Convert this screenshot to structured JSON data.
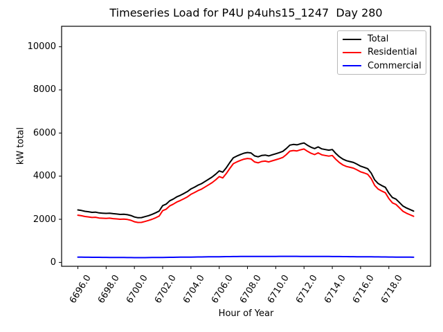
{
  "title": "Timeseries Load for P4U p4uhs15_1247  Day 280",
  "axes": {
    "xlabel": "Hour of Year",
    "ylabel": "kW total"
  },
  "legend": {
    "position": "upper right",
    "entries": [
      {
        "label": "Total",
        "color": "#000000"
      },
      {
        "label": "Residential",
        "color": "#ff0000"
      },
      {
        "label": "Commercial",
        "color": "#0000ff"
      }
    ]
  },
  "chart_data": {
    "type": "line",
    "title": "Timeseries Load for P4U p4uhs15_1247  Day 280",
    "xlabel": "Hour of Year",
    "ylabel": "kW total",
    "grid": false,
    "legend_position": "upper right",
    "xlim": [
      6694.85,
      6720.95
    ],
    "ylim": [
      -180,
      10950
    ],
    "xticks": [
      6696,
      6698,
      6700,
      6702,
      6704,
      6706,
      6708,
      6710,
      6712,
      6714,
      6716,
      6718
    ],
    "xtick_labels": [
      "6696.0",
      "6698.0",
      "6700.0",
      "6702.0",
      "6704.0",
      "6706.0",
      "6708.0",
      "6710.0",
      "6712.0",
      "6714.0",
      "6716.0",
      "6718.0"
    ],
    "yticks": [
      0,
      2000,
      4000,
      6000,
      8000,
      10000
    ],
    "ytick_labels": [
      "0",
      "2000",
      "4000",
      "6000",
      "8000",
      "10000"
    ],
    "x_start": 6696.0,
    "x_step": 0.25,
    "series": [
      {
        "name": "Total",
        "color": "#000000",
        "values": [
          2435,
          2408,
          2371,
          2350,
          2323,
          2332,
          2296,
          2284,
          2273,
          2283,
          2260,
          2244,
          2227,
          2234,
          2214,
          2175,
          2106,
          2072,
          2079,
          2122,
          2169,
          2228,
          2298,
          2380,
          2632,
          2704,
          2856,
          2938,
          3040,
          3112,
          3194,
          3286,
          3408,
          3490,
          3582,
          3654,
          3756,
          3858,
          3960,
          4092,
          4244,
          4186,
          4388,
          4630,
          4852,
          4933,
          5004,
          5065,
          5096,
          5077,
          4938,
          4898,
          4959,
          4979,
          4940,
          4990,
          5040,
          5091,
          5151,
          5281,
          5441,
          5471,
          5451,
          5500,
          5540,
          5429,
          5339,
          5278,
          5357,
          5266,
          5235,
          5204,
          5233,
          5052,
          4901,
          4790,
          4718,
          4677,
          4636,
          4554,
          4463,
          4411,
          4350,
          4148,
          3827,
          3655,
          3564,
          3482,
          3211,
          3009,
          2938,
          2776,
          2615,
          2524,
          2452,
          2381
        ]
      },
      {
        "name": "Residential",
        "color": "#ff0000",
        "values": [
          2190,
          2165,
          2130,
          2110,
          2085,
          2095,
          2060,
          2050,
          2040,
          2052,
          2030,
          2016,
          2000,
          2008,
          1990,
          1952,
          1885,
          1852,
          1858,
          1900,
          1945,
          2002,
          2070,
          2150,
          2400,
          2470,
          2620,
          2700,
          2800,
          2870,
          2950,
          3040,
          3160,
          3240,
          3330,
          3400,
          3500,
          3600,
          3700,
          3830,
          3980,
          3920,
          4120,
          4360,
          4580,
          4660,
          4730,
          4790,
          4820,
          4800,
          4660,
          4620,
          4680,
          4700,
          4660,
          4710,
          4760,
          4810,
          4870,
          5000,
          5160,
          5190,
          5170,
          5220,
          5260,
          5150,
          5060,
          5000,
          5080,
          4990,
          4960,
          4930,
          4960,
          4780,
          4630,
          4520,
          4450,
          4410,
          4370,
          4290,
          4200,
          4150,
          4090,
          3890,
          3570,
          3400,
          3310,
          3230,
          2960,
          2760,
          2690,
          2530,
          2370,
          2280,
          2210,
          2140
        ]
      },
      {
        "name": "Commercial",
        "color": "#0000ff",
        "values": [
          245,
          243,
          241,
          240,
          238,
          237,
          236,
          234,
          233,
          231,
          230,
          228,
          227,
          226,
          224,
          223,
          221,
          220,
          221,
          222,
          224,
          226,
          228,
          230,
          232,
          234,
          236,
          238,
          240,
          242,
          244,
          246,
          248,
          250,
          252,
          254,
          256,
          258,
          260,
          262,
          264,
          266,
          268,
          270,
          272,
          273,
          274,
          275,
          276,
          277,
          278,
          278,
          279,
          279,
          280,
          280,
          280,
          281,
          281,
          281,
          281,
          281,
          281,
          280,
          280,
          279,
          279,
          278,
          277,
          276,
          275,
          274,
          273,
          272,
          271,
          270,
          268,
          267,
          266,
          264,
          263,
          261,
          260,
          258,
          257,
          255,
          254,
          252,
          251,
          249,
          248,
          246,
          245,
          244,
          242,
          241
        ]
      }
    ]
  }
}
